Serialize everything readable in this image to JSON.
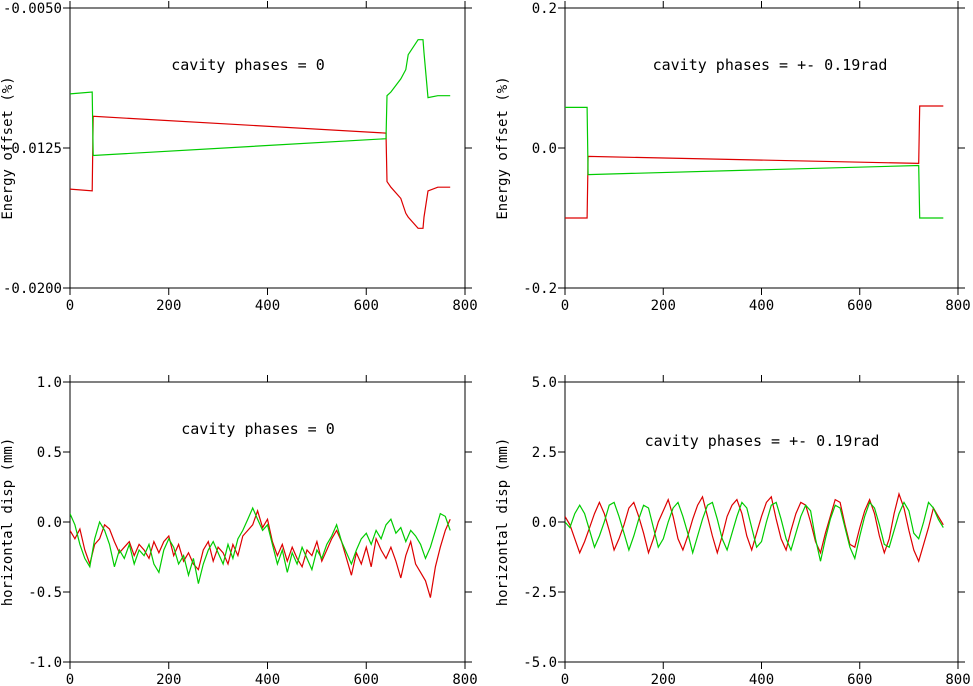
{
  "chart_data": [
    {
      "type": "line",
      "annotation": "cavity phases = 0",
      "ylabel": "Energy offset (%)",
      "xlabel": "",
      "xlim": [
        0,
        800
      ],
      "ylim": [
        -0.02,
        -0.005
      ],
      "xticks": [
        0,
        200,
        400,
        600,
        800
      ],
      "xtick_labels": [
        "0",
        "200",
        "400",
        "600",
        "800"
      ],
      "yticks": [
        -0.005,
        -0.0125,
        -0.02
      ],
      "ytick_labels": [
        "-0.0050",
        "-0.0125",
        "-0.0200"
      ],
      "series": [
        {
          "color": "#dd0000",
          "x": [
            0,
            45,
            47,
            640,
            642,
            650,
            670,
            680,
            685,
            705,
            715,
            717,
            725,
            745,
            770
          ],
          "y": [
            -0.0147,
            -0.0148,
            -0.0108,
            -0.0117,
            -0.0143,
            -0.0146,
            -0.0152,
            -0.016,
            -0.0162,
            -0.0168,
            -0.0168,
            -0.0162,
            -0.0148,
            -0.0146,
            -0.0146
          ]
        },
        {
          "color": "#00cc00",
          "x": [
            0,
            45,
            47,
            640,
            642,
            650,
            670,
            680,
            685,
            705,
            715,
            717,
            725,
            745,
            770
          ],
          "y": [
            -0.0096,
            -0.0095,
            -0.0129,
            -0.012,
            -0.0097,
            -0.0095,
            -0.0088,
            -0.0083,
            -0.0075,
            -0.0067,
            -0.0067,
            -0.0074,
            -0.0098,
            -0.0097,
            -0.0097
          ]
        }
      ]
    },
    {
      "type": "line",
      "annotation": "cavity phases = +- 0.19rad",
      "ylabel": "Energy offset (%)",
      "xlabel": "",
      "xlim": [
        0,
        800
      ],
      "ylim": [
        -0.2,
        0.2
      ],
      "xticks": [
        0,
        200,
        400,
        600,
        800
      ],
      "xtick_labels": [
        "0",
        "200",
        "400",
        "600",
        "800"
      ],
      "yticks": [
        0.2,
        0.0,
        -0.2
      ],
      "ytick_labels": [
        "0.2",
        "0.0",
        "-0.2"
      ],
      "series": [
        {
          "color": "#dd0000",
          "x": [
            0,
            45,
            47,
            720,
            722,
            770
          ],
          "y": [
            -0.1,
            -0.1,
            -0.012,
            -0.022,
            0.06,
            0.06
          ]
        },
        {
          "color": "#00cc00",
          "x": [
            0,
            45,
            47,
            720,
            722,
            770
          ],
          "y": [
            0.058,
            0.058,
            -0.038,
            -0.025,
            -0.1,
            -0.1
          ]
        }
      ]
    },
    {
      "type": "line",
      "annotation": "cavity phases = 0",
      "ylabel": "horizontal disp (mm)",
      "xlabel": "",
      "xlim": [
        0,
        800
      ],
      "ylim": [
        -1.0,
        1.0
      ],
      "xticks": [
        0,
        200,
        400,
        600,
        800
      ],
      "xtick_labels": [
        "0",
        "200",
        "400",
        "600",
        "800"
      ],
      "yticks": [
        1.0,
        0.5,
        0.0,
        -0.5,
        -1.0
      ],
      "ytick_labels": [
        "1.0",
        "0.5",
        "0.0",
        "-0.5",
        "-1.0"
      ],
      "series": [
        {
          "color": "#dd0000",
          "x": [
            0,
            10,
            20,
            30,
            40,
            50,
            60,
            70,
            80,
            90,
            100,
            110,
            120,
            130,
            140,
            150,
            160,
            170,
            180,
            190,
            200,
            210,
            220,
            230,
            240,
            250,
            260,
            270,
            280,
            290,
            300,
            310,
            320,
            330,
            340,
            350,
            360,
            370,
            380,
            390,
            400,
            410,
            420,
            430,
            440,
            450,
            460,
            470,
            480,
            490,
            500,
            510,
            520,
            530,
            540,
            550,
            560,
            570,
            580,
            590,
            600,
            610,
            620,
            630,
            640,
            650,
            660,
            670,
            680,
            690,
            700,
            710,
            720,
            730,
            740,
            750,
            760,
            770
          ],
          "y": [
            -0.06,
            -0.12,
            -0.05,
            -0.2,
            -0.3,
            -0.16,
            -0.12,
            -0.02,
            -0.05,
            -0.14,
            -0.22,
            -0.18,
            -0.14,
            -0.24,
            -0.16,
            -0.2,
            -0.26,
            -0.14,
            -0.22,
            -0.14,
            -0.1,
            -0.24,
            -0.16,
            -0.28,
            -0.22,
            -0.3,
            -0.34,
            -0.2,
            -0.14,
            -0.28,
            -0.18,
            -0.22,
            -0.3,
            -0.16,
            -0.24,
            -0.1,
            -0.06,
            -0.02,
            0.08,
            -0.04,
            0.02,
            -0.14,
            -0.24,
            -0.16,
            -0.28,
            -0.18,
            -0.26,
            -0.32,
            -0.2,
            -0.24,
            -0.14,
            -0.28,
            -0.2,
            -0.12,
            -0.06,
            -0.14,
            -0.26,
            -0.38,
            -0.22,
            -0.3,
            -0.18,
            -0.32,
            -0.12,
            -0.2,
            -0.26,
            -0.18,
            -0.28,
            -0.4,
            -0.24,
            -0.14,
            -0.3,
            -0.36,
            -0.42,
            -0.54,
            -0.32,
            -0.18,
            -0.06,
            0.02
          ]
        },
        {
          "color": "#00cc00",
          "x": [
            0,
            10,
            20,
            30,
            40,
            50,
            60,
            70,
            80,
            90,
            100,
            110,
            120,
            130,
            140,
            150,
            160,
            170,
            180,
            190,
            200,
            210,
            220,
            230,
            240,
            250,
            260,
            270,
            280,
            290,
            300,
            310,
            320,
            330,
            340,
            350,
            360,
            370,
            380,
            390,
            400,
            410,
            420,
            430,
            440,
            450,
            460,
            470,
            480,
            490,
            500,
            510,
            520,
            530,
            540,
            550,
            560,
            570,
            580,
            590,
            600,
            610,
            620,
            630,
            640,
            650,
            660,
            670,
            680,
            690,
            700,
            710,
            720,
            730,
            740,
            750,
            760,
            770
          ],
          "y": [
            0.06,
            -0.02,
            -0.16,
            -0.26,
            -0.32,
            -0.12,
            0.0,
            -0.06,
            -0.16,
            -0.32,
            -0.2,
            -0.26,
            -0.16,
            -0.3,
            -0.2,
            -0.24,
            -0.16,
            -0.3,
            -0.36,
            -0.2,
            -0.12,
            -0.18,
            -0.3,
            -0.24,
            -0.38,
            -0.26,
            -0.44,
            -0.3,
            -0.2,
            -0.14,
            -0.22,
            -0.3,
            -0.16,
            -0.26,
            -0.12,
            -0.06,
            0.02,
            0.1,
            0.02,
            -0.06,
            -0.02,
            -0.16,
            -0.3,
            -0.2,
            -0.36,
            -0.22,
            -0.3,
            -0.18,
            -0.26,
            -0.34,
            -0.2,
            -0.26,
            -0.16,
            -0.1,
            -0.02,
            -0.14,
            -0.22,
            -0.3,
            -0.2,
            -0.12,
            -0.08,
            -0.16,
            -0.06,
            -0.12,
            -0.02,
            0.02,
            -0.08,
            -0.04,
            -0.14,
            -0.06,
            -0.1,
            -0.16,
            -0.26,
            -0.18,
            -0.06,
            0.06,
            0.04,
            -0.06
          ]
        }
      ]
    },
    {
      "type": "line",
      "annotation": "cavity phases = +- 0.19rad",
      "ylabel": "horizontal disp (mm)",
      "xlabel": "",
      "xlim": [
        0,
        800
      ],
      "ylim": [
        -5.0,
        5.0
      ],
      "xticks": [
        0,
        200,
        400,
        600,
        800
      ],
      "xtick_labels": [
        "0",
        "200",
        "400",
        "600",
        "800"
      ],
      "yticks": [
        5.0,
        2.5,
        0.0,
        -2.5,
        -5.0
      ],
      "ytick_labels": [
        "5.0",
        "2.5",
        "0.0",
        "-2.5",
        "-5.0"
      ],
      "series": [
        {
          "color": "#dd0000",
          "x": [
            0,
            10,
            20,
            30,
            40,
            50,
            60,
            70,
            80,
            90,
            100,
            110,
            120,
            130,
            140,
            150,
            160,
            170,
            180,
            190,
            200,
            210,
            220,
            230,
            240,
            250,
            260,
            270,
            280,
            290,
            300,
            310,
            320,
            330,
            340,
            350,
            360,
            370,
            380,
            390,
            400,
            410,
            420,
            430,
            440,
            450,
            460,
            470,
            480,
            490,
            500,
            510,
            520,
            530,
            540,
            550,
            560,
            570,
            580,
            590,
            600,
            610,
            620,
            630,
            640,
            650,
            660,
            670,
            680,
            690,
            700,
            710,
            720,
            730,
            740,
            750,
            760,
            770
          ],
          "y": [
            0.2,
            -0.1,
            -0.6,
            -1.1,
            -0.7,
            -0.2,
            0.3,
            0.7,
            0.3,
            -0.3,
            -1.0,
            -0.6,
            -0.1,
            0.5,
            0.7,
            0.2,
            -0.4,
            -1.1,
            -0.6,
            0.0,
            0.4,
            0.8,
            0.2,
            -0.6,
            -1.0,
            -0.5,
            0.1,
            0.6,
            0.9,
            0.2,
            -0.5,
            -1.1,
            -0.5,
            0.2,
            0.6,
            0.8,
            0.3,
            -0.5,
            -1.0,
            -0.4,
            0.2,
            0.7,
            0.9,
            0.1,
            -0.6,
            -1.0,
            -0.3,
            0.3,
            0.7,
            0.6,
            0.0,
            -0.7,
            -1.1,
            -0.4,
            0.2,
            0.8,
            0.7,
            -0.1,
            -0.8,
            -0.9,
            -0.2,
            0.4,
            0.8,
            0.3,
            -0.5,
            -1.1,
            -0.6,
            0.3,
            1.0,
            0.5,
            -0.3,
            -1.0,
            -1.4,
            -0.8,
            -0.2,
            0.5,
            0.2,
            -0.1
          ]
        },
        {
          "color": "#00cc00",
          "x": [
            0,
            10,
            20,
            30,
            40,
            50,
            60,
            70,
            80,
            90,
            100,
            110,
            120,
            130,
            140,
            150,
            160,
            170,
            180,
            190,
            200,
            210,
            220,
            230,
            240,
            250,
            260,
            270,
            280,
            290,
            300,
            310,
            320,
            330,
            340,
            350,
            360,
            370,
            380,
            390,
            400,
            410,
            420,
            430,
            440,
            450,
            460,
            470,
            480,
            490,
            500,
            510,
            520,
            530,
            540,
            550,
            560,
            570,
            580,
            590,
            600,
            610,
            620,
            630,
            640,
            650,
            660,
            670,
            680,
            690,
            700,
            710,
            720,
            730,
            740,
            750,
            760,
            770
          ],
          "y": [
            0.0,
            -0.2,
            0.3,
            0.6,
            0.3,
            -0.3,
            -0.9,
            -0.5,
            0.0,
            0.6,
            0.7,
            0.2,
            -0.4,
            -1.0,
            -0.5,
            0.1,
            0.6,
            0.5,
            -0.2,
            -0.9,
            -0.6,
            0.0,
            0.5,
            0.7,
            0.2,
            -0.4,
            -1.1,
            -0.5,
            0.1,
            0.6,
            0.7,
            0.1,
            -0.6,
            -1.0,
            -0.4,
            0.2,
            0.7,
            0.5,
            -0.2,
            -0.9,
            -0.7,
            0.0,
            0.6,
            0.7,
            0.1,
            -0.6,
            -1.0,
            -0.4,
            0.2,
            0.6,
            0.4,
            -0.6,
            -1.4,
            -0.6,
            0.1,
            0.6,
            0.5,
            -0.2,
            -0.9,
            -1.3,
            -0.5,
            0.2,
            0.7,
            0.5,
            -0.1,
            -0.8,
            -0.9,
            -0.3,
            0.3,
            0.7,
            0.4,
            -0.4,
            -0.6,
            0.0,
            0.7,
            0.5,
            0.1,
            -0.2
          ]
        }
      ]
    }
  ]
}
